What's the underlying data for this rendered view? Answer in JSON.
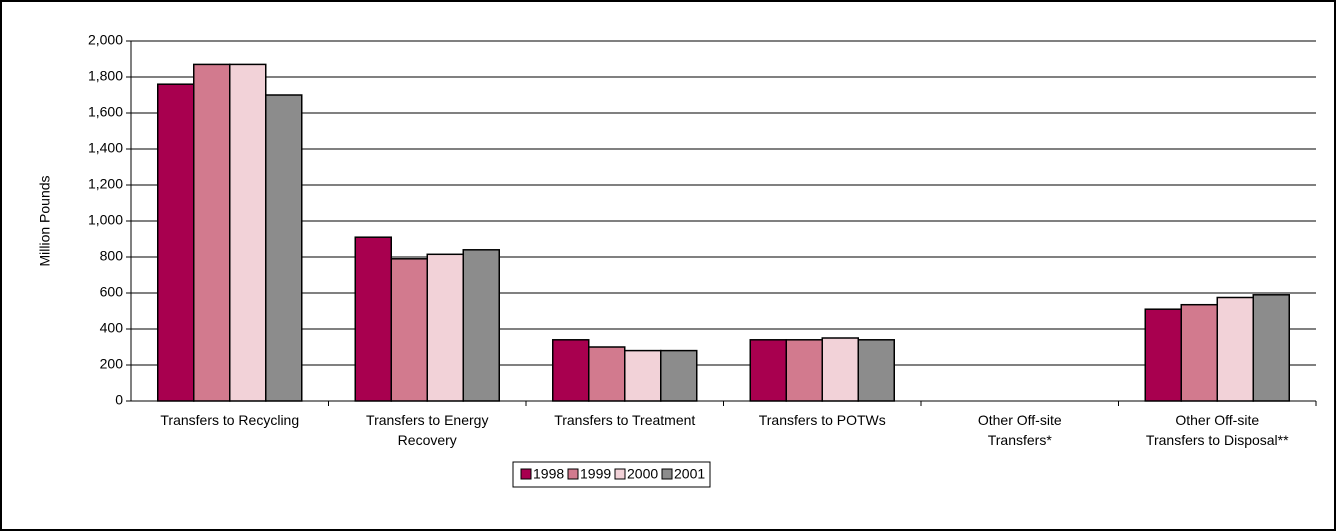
{
  "chart_data": {
    "type": "bar",
    "y_label": "Million Pounds",
    "categories": [
      "Transfers to Recycling",
      "Transfers to Energy\nRecovery",
      "Transfers to Treatment",
      "Transfers to POTWs",
      "Other Off-site\nTransfers*",
      "Other Off-site\nTransfers to Disposal**"
    ],
    "series": [
      {
        "name": "1998",
        "color": "#a8004f",
        "values": [
          1760,
          910,
          340,
          340,
          0,
          510
        ]
      },
      {
        "name": "1999",
        "color": "#d27a8e",
        "values": [
          1870,
          790,
          300,
          340,
          0,
          535
        ]
      },
      {
        "name": "2000",
        "color": "#f2d2d8",
        "values": [
          1870,
          815,
          280,
          350,
          0,
          575
        ]
      },
      {
        "name": "2001",
        "color": "#8c8c8c",
        "values": [
          1700,
          840,
          280,
          340,
          0,
          590
        ]
      }
    ],
    "ylim": [
      0,
      2000
    ],
    "yticks": [
      0,
      {
        "value": 200,
        "label": "200"
      },
      400,
      600,
      800,
      {
        "value": 1000,
        "label": "1,000"
      },
      {
        "value": 1200,
        "label": "1,200"
      },
      {
        "value": 1400,
        "label": "1,400"
      },
      {
        "value": 1600,
        "label": "1,600"
      },
      {
        "value": 1800,
        "label": "1,800"
      },
      {
        "value": 2000,
        "label": "2,000"
      }
    ],
    "grid": true,
    "legend": "bottom"
  }
}
